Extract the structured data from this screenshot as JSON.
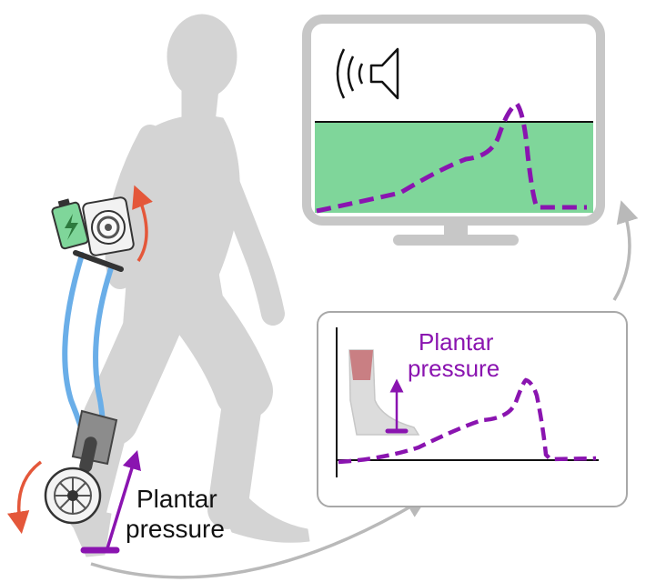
{
  "labels": {
    "foot_line1": "Plantar",
    "foot_line2": "pressure",
    "inset_line1": "Plantar",
    "inset_line2": "pressure"
  },
  "icons": [
    "battery-charging-icon",
    "motor-icon",
    "speaker-sound-icon"
  ],
  "colors": {
    "body": "#d4d4d4",
    "tube": "#6aaee8",
    "pressure": "#8a14b0",
    "rotation_arrow": "#e4573a",
    "monitor_frame": "#c7c7c7",
    "feedback_fill": "#7fd69a",
    "flow_arrow": "#b9b9b9"
  }
}
